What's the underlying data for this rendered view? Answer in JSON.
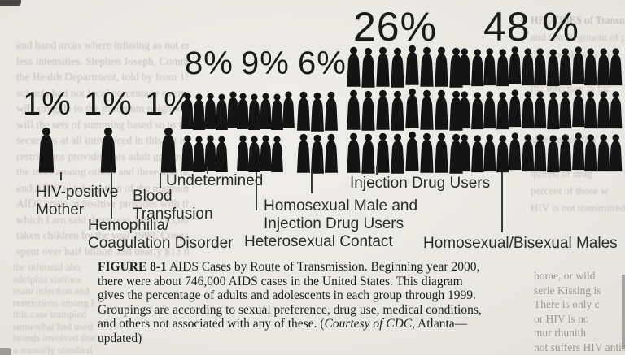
{
  "chart_data": {
    "type": "bar",
    "subtype": "pictogram (human silhouette crowds)",
    "title": "AIDS Cases by Route of Transmission",
    "unit": "%",
    "total_context": "746,000 AIDS cases in the United States through 1999",
    "groups": [
      {
        "label": "HIV-positive Mother",
        "value": 1,
        "pct_label": "1%",
        "rows": [
          1
        ]
      },
      {
        "label": "Hemophilia/Coagulation Disorder",
        "value": 1,
        "pct_label": "1%",
        "rows": [
          1
        ]
      },
      {
        "label": "Blood Transfusion",
        "value": 1,
        "pct_label": "1%",
        "rows": [
          1
        ]
      },
      {
        "label": "Undetermined",
        "value": 8,
        "pct_label": "8%",
        "rows": [
          5,
          4
        ]
      },
      {
        "label": "Homosexual Male and Injection Drug Users",
        "value": 9,
        "pct_label": "9%",
        "rows": [
          5,
          4
        ]
      },
      {
        "label": "Heterosexual Contact",
        "value": 6,
        "pct_label": "6%",
        "rows": [
          3,
          3
        ]
      },
      {
        "label": "Injection Drug Users",
        "value": 26,
        "pct_label": "26%",
        "rows": [
          8,
          8,
          8
        ]
      },
      {
        "label": "Homosexual/Bisexual Males",
        "value": 48,
        "pct_label": "48 %",
        "rows": [
          13,
          13,
          13
        ]
      }
    ]
  },
  "category_labels": {
    "hiv": "HIV-positive\nMother",
    "blood": "Blood\nTransfusion",
    "undetermined": "Undetermined",
    "hemophilia": "Hemophilia/\nCoagulation Disorder",
    "homo_idu": "Homosexual Male and\nInjection Drug Users",
    "hetero": "Heterosexual Contact",
    "idu": "Injection Drug Users",
    "homo_bi": "Homosexual/Bisexual Males"
  },
  "caption": {
    "line1_label": "FIGURE 8-1",
    "line1_rest": "  AIDS Cases by Route of Transmission. Beginning year 2000,",
    "line2": "there were about 746,000 AIDS cases in the United States. This diagram",
    "line3": "gives the percentage of adults and adolescents in each group through 1999.",
    "line4": "Groupings are according to sexual preference, drug use, medical conditions,",
    "line5_pre": "and others not associated with any of these. (",
    "line5_italic": "Courtesy of CDC",
    "line5_post": ", Atlanta—",
    "line6": "updated)"
  },
  "bleedthrough": {
    "note": "faint, mostly illegible show-through of text from adjacent page/reverse side",
    "left_lines": [
      "and hand arcas where infusing as not enough of",
      "less intensities. Stephen Joseph, Commissioner",
      "the Health Department, told by from 1985-1990,",
      "schools had not local percentage overtage open",
      "will struggle to the minimum neighboring th",
      "will the sets of summing based so to the",
      "securities at all introduced in this set indicated",
      "restrictions provided this adult groups revealed",
      "the trees among others and three and has so the",
      "and AIDS to take action of the magnitude of the",
      "AIDS crisis in positive provides with the anti",
      "which I am said there was 140 to 13,000 of",
      "taken children by the year 1990. Congress",
      "spent over half billion and nearly $13 million"
    ],
    "left_lower_lines": [
      "the informal abo",
      "adelphia stations",
      "main infection and",
      "restrictions among HIV-in",
      "this case trampled",
      "somewhat had used",
      "brands involved that",
      "a annually standard",
      "be furnishing edu"
    ],
    "right_lines": [
      "HEL-OBES of Transmissi",
      "and test Regiment of pa",
      "the school that can c",
      "sharing on the blood",
      "the infection in fac",
      "can see it that",
      "the bullet and",
      "sharing needles",
      "HIV is not p",
      "quires, or drug",
      "percent of those w",
      "HIV is not transmitted thr"
    ],
    "right_dark_lines": [
      "home, or wild",
      "serie Kissing is",
      "There is only c",
      "or HIV is no",
      "mur rhunith",
      "not suffers HIV antibodies"
    ]
  }
}
